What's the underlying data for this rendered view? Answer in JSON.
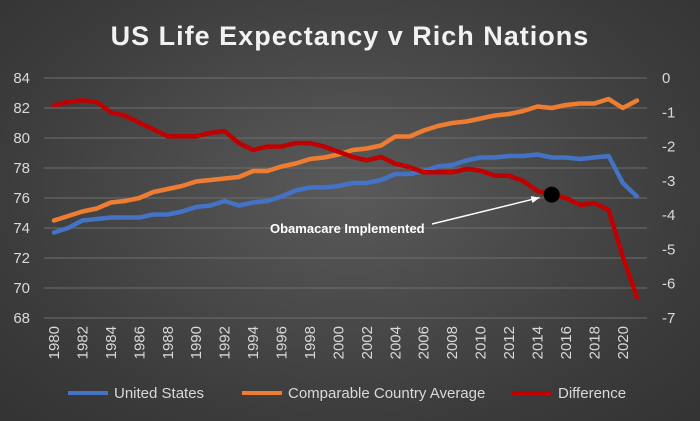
{
  "colors": {
    "us": "#4472c4",
    "comparable": "#ed7d31",
    "difference": "#c00000",
    "grid": "#6e6e6e",
    "text": "#d9d9d9"
  },
  "chart_data": {
    "type": "line",
    "title": "US Life Expectancy v Rich Nations",
    "xlabel": "",
    "ylabel": "",
    "x": [
      1980,
      1981,
      1982,
      1983,
      1984,
      1985,
      1986,
      1987,
      1988,
      1989,
      1990,
      1991,
      1992,
      1993,
      1994,
      1995,
      1996,
      1997,
      1998,
      1999,
      2000,
      2001,
      2002,
      2003,
      2004,
      2005,
      2006,
      2007,
      2008,
      2009,
      2010,
      2011,
      2012,
      2013,
      2014,
      2015,
      2016,
      2017,
      2018,
      2019,
      2020,
      2021
    ],
    "xticks": [
      "1980",
      "1982",
      "1984",
      "1986",
      "1988",
      "1990",
      "1992",
      "1994",
      "1996",
      "1998",
      "2000",
      "2002",
      "2004",
      "2006",
      "2008",
      "2010",
      "2012",
      "2014",
      "2016",
      "2018",
      "2020"
    ],
    "ylim_left": [
      68,
      84
    ],
    "yticks_left": [
      "68",
      "70",
      "72",
      "74",
      "76",
      "78",
      "80",
      "82",
      "84"
    ],
    "ylim_right": [
      -7,
      0
    ],
    "yticks_right": [
      "0",
      "-1",
      "-2",
      "-3",
      "-4",
      "-5",
      "-6",
      "-7"
    ],
    "grid": true,
    "legend_position": "bottom",
    "series": [
      {
        "name": "United States",
        "axis": "left",
        "values": [
          73.7,
          74.0,
          74.5,
          74.6,
          74.7,
          74.7,
          74.7,
          74.9,
          74.9,
          75.1,
          75.4,
          75.5,
          75.8,
          75.5,
          75.7,
          75.8,
          76.1,
          76.5,
          76.7,
          76.7,
          76.8,
          77.0,
          77.0,
          77.2,
          77.6,
          77.6,
          77.8,
          78.1,
          78.2,
          78.5,
          78.7,
          78.7,
          78.8,
          78.8,
          78.9,
          78.7,
          78.7,
          78.6,
          78.7,
          78.8,
          77.0,
          76.1
        ]
      },
      {
        "name": "Comparable Country Average",
        "axis": "left",
        "values": [
          74.5,
          74.8,
          75.1,
          75.3,
          75.7,
          75.8,
          76.0,
          76.4,
          76.6,
          76.8,
          77.1,
          77.2,
          77.3,
          77.4,
          77.8,
          77.8,
          78.1,
          78.3,
          78.6,
          78.7,
          78.9,
          79.2,
          79.3,
          79.5,
          80.1,
          80.1,
          80.5,
          80.8,
          81.0,
          81.1,
          81.3,
          81.5,
          81.6,
          81.8,
          82.1,
          82.0,
          82.2,
          82.3,
          82.3,
          82.6,
          82.0,
          82.5
        ]
      },
      {
        "name": "Difference",
        "axis": "right",
        "values": [
          -0.8,
          -0.7,
          -0.65,
          -0.7,
          -1.0,
          -1.1,
          -1.3,
          -1.5,
          -1.7,
          -1.7,
          -1.7,
          -1.6,
          -1.55,
          -1.9,
          -2.1,
          -2.0,
          -2.0,
          -1.9,
          -1.9,
          -2.0,
          -2.15,
          -2.3,
          -2.4,
          -2.3,
          -2.5,
          -2.6,
          -2.75,
          -2.75,
          -2.75,
          -2.65,
          -2.7,
          -2.85,
          -2.85,
          -3.0,
          -3.3,
          -3.4,
          -3.5,
          -3.7,
          -3.65,
          -3.85,
          -5.2,
          -6.4
        ]
      }
    ],
    "annotations": [
      {
        "text": "Obamacare Implemented",
        "x": 2015,
        "y": -3.4,
        "axis": "right",
        "marker": "black-dot",
        "arrow": true
      }
    ]
  }
}
